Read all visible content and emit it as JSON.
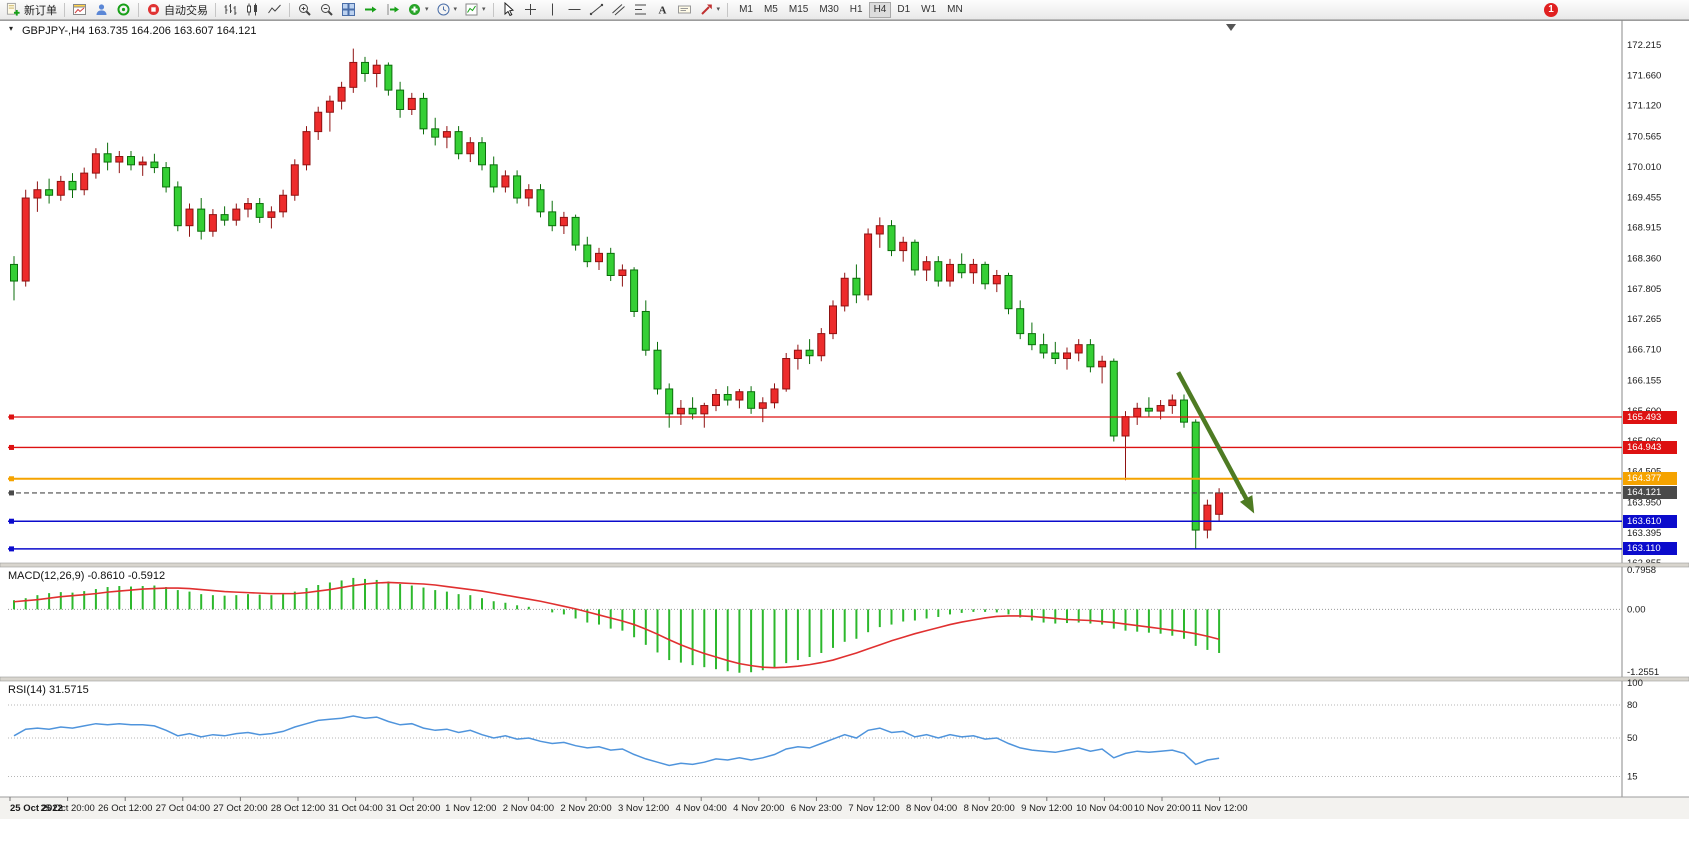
{
  "toolbar": {
    "new_order": "新订单",
    "autotrading": "自动交易",
    "timeframes": [
      "M1",
      "M5",
      "M15",
      "M30",
      "H1",
      "H4",
      "D1",
      "W1",
      "MN"
    ],
    "active_timeframe": "H4",
    "notification_count": "1"
  },
  "chart": {
    "title": "GBPJPY-,H4 163.735 164.206 163.607 164.121",
    "price_scale_max": 172.215,
    "price_scale_min": 162.855,
    "price_axis_labels": [
      "172.215",
      "171.660",
      "171.120",
      "170.565",
      "170.010",
      "169.455",
      "168.915",
      "168.360",
      "167.805",
      "167.265",
      "166.710",
      "166.155",
      "165.600",
      "165.060",
      "164.505",
      "163.950",
      "163.395",
      "162.855"
    ],
    "time_axis_labels": [
      "25 Oct 2022",
      "25 Oct 20:00",
      "26 Oct 12:00",
      "27 Oct 04:00",
      "27 Oct 20:00",
      "28 Oct 12:00",
      "31 Oct 04:00",
      "31 Oct 20:00",
      "1 Nov 12:00",
      "2 Nov 04:00",
      "2 Nov 20:00",
      "3 Nov 12:00",
      "4 Nov 04:00",
      "4 Nov 20:00",
      "6 Nov 23:00",
      "7 Nov 12:00",
      "8 Nov 04:00",
      "8 Nov 20:00",
      "9 Nov 12:00",
      "10 Nov 04:00",
      "10 Nov 20:00",
      "11 Nov 12:00"
    ],
    "levels": [
      {
        "label": "165.493",
        "price": 165.493,
        "color": "#dd1111",
        "style": "solid",
        "thickness": 1.3
      },
      {
        "label": "164.943",
        "price": 164.943,
        "color": "#dd1111",
        "style": "solid",
        "thickness": 1.3
      },
      {
        "label": "164.377",
        "price": 164.377,
        "color": "#f5a300",
        "style": "solid",
        "thickness": 2
      },
      {
        "label": "164.121",
        "price": 164.121,
        "color": "#4a4a4a",
        "style": "dashed",
        "thickness": 1.2
      },
      {
        "label": "163.610",
        "price": 163.61,
        "color": "#0b0bcc",
        "style": "solid",
        "thickness": 1.5
      },
      {
        "label": "163.110",
        "price": 163.11,
        "color": "#0b0bcc",
        "style": "solid",
        "thickness": 1.5
      }
    ]
  },
  "macd": {
    "label": "MACD(12,26,9) -0.8610 -0.5912",
    "axis_labels": [
      "0.7958",
      "0.00",
      "-1.2551"
    ],
    "scale_max": 0.7958,
    "scale_min": -1.2551
  },
  "rsi": {
    "label": "RSI(14) 31.5715",
    "axis_labels": [
      "100",
      "80",
      "50",
      "15"
    ],
    "levels": [
      80,
      50,
      15
    ],
    "last_value": 31.5715
  },
  "chart_data": {
    "type": "candlestick",
    "symbol": "GBPJPY-",
    "timeframe": "H4",
    "bull_color": "#ed2c2c",
    "bear_color": "#35cf35",
    "macd_color": "#2db82d",
    "signal_color": "#e03030",
    "rsi_color": "#4f94dc",
    "y_range": [
      162.855,
      172.215
    ],
    "candles": [
      [
        168.25,
        168.4,
        167.6,
        167.95
      ],
      [
        167.95,
        169.6,
        167.85,
        169.45
      ],
      [
        169.45,
        169.75,
        169.2,
        169.6
      ],
      [
        169.6,
        169.8,
        169.35,
        169.5
      ],
      [
        169.5,
        169.85,
        169.4,
        169.75
      ],
      [
        169.75,
        169.9,
        169.45,
        169.6
      ],
      [
        169.6,
        170.0,
        169.5,
        169.9
      ],
      [
        169.9,
        170.35,
        169.8,
        170.25
      ],
      [
        170.25,
        170.45,
        169.95,
        170.1
      ],
      [
        170.1,
        170.3,
        169.9,
        170.2
      ],
      [
        170.2,
        170.3,
        169.95,
        170.05
      ],
      [
        170.05,
        170.2,
        169.85,
        170.1
      ],
      [
        170.1,
        170.25,
        169.9,
        170.0
      ],
      [
        170.0,
        170.1,
        169.55,
        169.65
      ],
      [
        169.65,
        169.75,
        168.85,
        168.95
      ],
      [
        168.95,
        169.35,
        168.75,
        169.25
      ],
      [
        169.25,
        169.45,
        168.7,
        168.85
      ],
      [
        168.85,
        169.25,
        168.75,
        169.15
      ],
      [
        169.15,
        169.3,
        168.95,
        169.05
      ],
      [
        169.05,
        169.35,
        168.95,
        169.25
      ],
      [
        169.25,
        169.45,
        169.1,
        169.35
      ],
      [
        169.35,
        169.45,
        169.0,
        169.1
      ],
      [
        169.1,
        169.3,
        168.9,
        169.2
      ],
      [
        169.2,
        169.6,
        169.1,
        169.5
      ],
      [
        169.5,
        170.15,
        169.4,
        170.05
      ],
      [
        170.05,
        170.75,
        169.95,
        170.65
      ],
      [
        170.65,
        171.1,
        170.5,
        171.0
      ],
      [
        171.0,
        171.3,
        170.65,
        171.2
      ],
      [
        171.2,
        171.55,
        171.05,
        171.45
      ],
      [
        171.45,
        172.15,
        171.35,
        171.9
      ],
      [
        171.9,
        172.0,
        171.55,
        171.7
      ],
      [
        171.7,
        171.95,
        171.45,
        171.85
      ],
      [
        171.85,
        171.9,
        171.3,
        171.4
      ],
      [
        171.4,
        171.55,
        170.9,
        171.05
      ],
      [
        171.05,
        171.35,
        170.95,
        171.25
      ],
      [
        171.25,
        171.35,
        170.6,
        170.7
      ],
      [
        170.7,
        170.9,
        170.4,
        170.55
      ],
      [
        170.55,
        170.75,
        170.35,
        170.65
      ],
      [
        170.65,
        170.75,
        170.15,
        170.25
      ],
      [
        170.25,
        170.55,
        170.1,
        170.45
      ],
      [
        170.45,
        170.55,
        169.95,
        170.05
      ],
      [
        170.05,
        170.2,
        169.55,
        169.65
      ],
      [
        169.65,
        169.95,
        169.55,
        169.85
      ],
      [
        169.85,
        169.95,
        169.35,
        169.45
      ],
      [
        169.45,
        169.7,
        169.3,
        169.6
      ],
      [
        169.6,
        169.7,
        169.1,
        169.2
      ],
      [
        169.2,
        169.4,
        168.85,
        168.95
      ],
      [
        168.95,
        169.2,
        168.8,
        169.1
      ],
      [
        169.1,
        169.15,
        168.5,
        168.6
      ],
      [
        168.6,
        168.75,
        168.2,
        168.3
      ],
      [
        168.3,
        168.55,
        168.15,
        168.45
      ],
      [
        168.45,
        168.55,
        167.95,
        168.05
      ],
      [
        168.05,
        168.25,
        167.85,
        168.15
      ],
      [
        168.15,
        168.2,
        167.3,
        167.4
      ],
      [
        167.4,
        167.6,
        166.6,
        166.7
      ],
      [
        166.7,
        166.85,
        165.9,
        166.0
      ],
      [
        166.0,
        166.1,
        165.3,
        165.55
      ],
      [
        165.55,
        165.8,
        165.35,
        165.65
      ],
      [
        165.65,
        165.85,
        165.45,
        165.55
      ],
      [
        165.55,
        165.75,
        165.3,
        165.7
      ],
      [
        165.7,
        166.0,
        165.6,
        165.9
      ],
      [
        165.9,
        166.05,
        165.7,
        165.8
      ],
      [
        165.8,
        166.0,
        165.65,
        165.95
      ],
      [
        165.95,
        166.05,
        165.55,
        165.65
      ],
      [
        165.65,
        165.85,
        165.4,
        165.75
      ],
      [
        165.75,
        166.1,
        165.65,
        166.0
      ],
      [
        166.0,
        166.65,
        165.95,
        166.55
      ],
      [
        166.55,
        166.8,
        166.35,
        166.7
      ],
      [
        166.7,
        166.9,
        166.45,
        166.6
      ],
      [
        166.6,
        167.1,
        166.5,
        167.0
      ],
      [
        167.0,
        167.6,
        166.9,
        167.5
      ],
      [
        167.5,
        168.1,
        167.4,
        168.0
      ],
      [
        168.0,
        168.25,
        167.55,
        167.7
      ],
      [
        167.7,
        168.9,
        167.6,
        168.8
      ],
      [
        168.8,
        169.1,
        168.55,
        168.95
      ],
      [
        168.95,
        169.05,
        168.4,
        168.5
      ],
      [
        168.5,
        168.75,
        168.3,
        168.65
      ],
      [
        168.65,
        168.7,
        168.05,
        168.15
      ],
      [
        168.15,
        168.4,
        167.95,
        168.3
      ],
      [
        168.3,
        168.4,
        167.85,
        167.95
      ],
      [
        167.95,
        168.35,
        167.85,
        168.25
      ],
      [
        168.25,
        168.45,
        168.0,
        168.1
      ],
      [
        168.1,
        168.35,
        167.9,
        168.25
      ],
      [
        168.25,
        168.3,
        167.8,
        167.9
      ],
      [
        167.9,
        168.15,
        167.75,
        168.05
      ],
      [
        168.05,
        168.1,
        167.35,
        167.45
      ],
      [
        167.45,
        167.6,
        166.9,
        167.0
      ],
      [
        167.0,
        167.2,
        166.7,
        166.8
      ],
      [
        166.8,
        167.0,
        166.55,
        166.65
      ],
      [
        166.65,
        166.85,
        166.45,
        166.55
      ],
      [
        166.55,
        166.75,
        166.35,
        166.65
      ],
      [
        166.65,
        166.9,
        166.5,
        166.8
      ],
      [
        166.8,
        166.9,
        166.3,
        166.4
      ],
      [
        166.4,
        166.6,
        166.1,
        166.5
      ],
      [
        166.5,
        166.55,
        165.05,
        165.15
      ],
      [
        165.15,
        165.6,
        164.35,
        165.5
      ],
      [
        165.5,
        165.75,
        165.35,
        165.65
      ],
      [
        165.65,
        165.85,
        165.5,
        165.6
      ],
      [
        165.6,
        165.8,
        165.45,
        165.7
      ],
      [
        165.7,
        165.9,
        165.55,
        165.8
      ],
      [
        165.8,
        165.9,
        165.3,
        165.4
      ],
      [
        165.4,
        165.45,
        163.1,
        163.45
      ],
      [
        163.45,
        164.0,
        163.3,
        163.9
      ],
      [
        163.735,
        164.206,
        163.607,
        164.121
      ]
    ],
    "horizontal_lines": [
      165.493,
      164.943,
      164.377,
      164.121,
      163.61,
      163.11
    ],
    "arrow": {
      "color": "#4e7b23",
      "from_bar": 99.5,
      "from_price": 166.3,
      "to_bar": 106,
      "to_price": 163.75
    },
    "macd_histogram": [
      0.18,
      0.22,
      0.28,
      0.32,
      0.34,
      0.33,
      0.36,
      0.4,
      0.44,
      0.46,
      0.45,
      0.46,
      0.47,
      0.44,
      0.38,
      0.35,
      0.3,
      0.28,
      0.27,
      0.28,
      0.3,
      0.29,
      0.28,
      0.3,
      0.35,
      0.42,
      0.48,
      0.53,
      0.57,
      0.62,
      0.6,
      0.58,
      0.55,
      0.5,
      0.47,
      0.43,
      0.38,
      0.35,
      0.3,
      0.28,
      0.22,
      0.16,
      0.13,
      0.08,
      0.05,
      0.0,
      -0.06,
      -0.1,
      -0.18,
      -0.26,
      -0.3,
      -0.38,
      -0.42,
      -0.55,
      -0.7,
      -0.85,
      -1.0,
      -1.05,
      -1.1,
      -1.14,
      -1.18,
      -1.22,
      -1.25,
      -1.24,
      -1.2,
      -1.14,
      -1.06,
      -1.0,
      -0.94,
      -0.86,
      -0.76,
      -0.64,
      -0.58,
      -0.45,
      -0.35,
      -0.3,
      -0.24,
      -0.22,
      -0.18,
      -0.15,
      -0.1,
      -0.07,
      -0.05,
      -0.05,
      -0.06,
      -0.1,
      -0.16,
      -0.22,
      -0.26,
      -0.28,
      -0.27,
      -0.26,
      -0.28,
      -0.3,
      -0.38,
      -0.42,
      -0.44,
      -0.46,
      -0.48,
      -0.52,
      -0.58,
      -0.72,
      -0.8,
      -0.86
    ],
    "macd_signal": [
      0.15,
      0.17,
      0.19,
      0.22,
      0.25,
      0.27,
      0.29,
      0.31,
      0.34,
      0.36,
      0.38,
      0.4,
      0.41,
      0.42,
      0.42,
      0.41,
      0.39,
      0.37,
      0.35,
      0.34,
      0.33,
      0.32,
      0.31,
      0.31,
      0.31,
      0.33,
      0.36,
      0.39,
      0.43,
      0.47,
      0.5,
      0.52,
      0.53,
      0.52,
      0.51,
      0.5,
      0.48,
      0.45,
      0.42,
      0.39,
      0.36,
      0.32,
      0.28,
      0.24,
      0.2,
      0.16,
      0.11,
      0.06,
      0.01,
      -0.05,
      -0.11,
      -0.17,
      -0.23,
      -0.3,
      -0.39,
      -0.49,
      -0.6,
      -0.7,
      -0.79,
      -0.87,
      -0.94,
      -1.01,
      -1.07,
      -1.11,
      -1.14,
      -1.15,
      -1.14,
      -1.12,
      -1.09,
      -1.05,
      -1.0,
      -0.93,
      -0.86,
      -0.78,
      -0.7,
      -0.62,
      -0.55,
      -0.48,
      -0.42,
      -0.36,
      -0.3,
      -0.25,
      -0.21,
      -0.17,
      -0.14,
      -0.13,
      -0.13,
      -0.14,
      -0.16,
      -0.18,
      -0.2,
      -0.21,
      -0.22,
      -0.24,
      -0.26,
      -0.29,
      -0.32,
      -0.35,
      -0.38,
      -0.41,
      -0.44,
      -0.48,
      -0.53,
      -0.59
    ],
    "rsi_values": [
      52,
      58,
      59,
      58,
      60,
      59,
      61,
      63,
      62,
      63,
      62,
      62,
      61,
      57,
      52,
      54,
      51,
      53,
      52,
      54,
      55,
      53,
      54,
      56,
      60,
      63,
      66,
      67,
      68,
      70,
      68,
      69,
      65,
      62,
      63,
      59,
      57,
      58,
      55,
      57,
      53,
      50,
      52,
      49,
      50,
      47,
      45,
      46,
      43,
      41,
      42,
      39,
      40,
      35,
      31,
      28,
      25,
      27,
      26,
      28,
      31,
      30,
      32,
      30,
      32,
      35,
      40,
      42,
      41,
      45,
      49,
      53,
      50,
      57,
      59,
      55,
      56,
      51,
      53,
      50,
      53,
      51,
      52,
      49,
      50,
      45,
      41,
      39,
      38,
      37,
      39,
      41,
      38,
      40,
      32,
      36,
      38,
      37,
      38,
      39,
      36,
      26,
      30,
      31.57
    ]
  }
}
